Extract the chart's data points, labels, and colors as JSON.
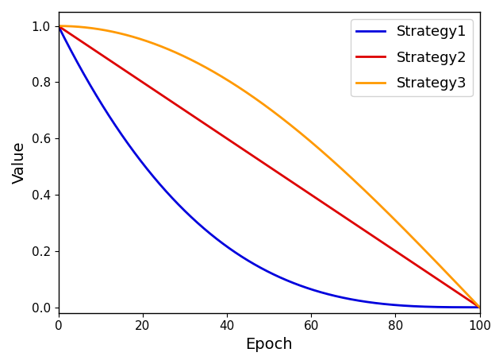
{
  "title": "",
  "xlabel": "Epoch",
  "ylabel": "Value",
  "xlim": [
    0,
    100
  ],
  "ylim": [
    -0.02,
    1.05
  ],
  "n_epochs": 1000,
  "strategies": [
    {
      "label": "Strategy1",
      "color": "#0000dd",
      "type": "power",
      "exponent": 3
    },
    {
      "label": "Strategy2",
      "color": "#dd0000",
      "type": "linear"
    },
    {
      "label": "Strategy3",
      "color": "#ff9900",
      "type": "cosine_half"
    }
  ],
  "linewidth": 2.0,
  "legend_fontsize": 13,
  "axis_label_fontsize": 14,
  "tick_fontsize": 11,
  "figsize": [
    6.34,
    4.58
  ],
  "dpi": 100,
  "xticks": [
    0,
    20,
    40,
    60,
    80,
    100
  ],
  "yticks": [
    0.0,
    0.2,
    0.4,
    0.6,
    0.8,
    1.0
  ]
}
